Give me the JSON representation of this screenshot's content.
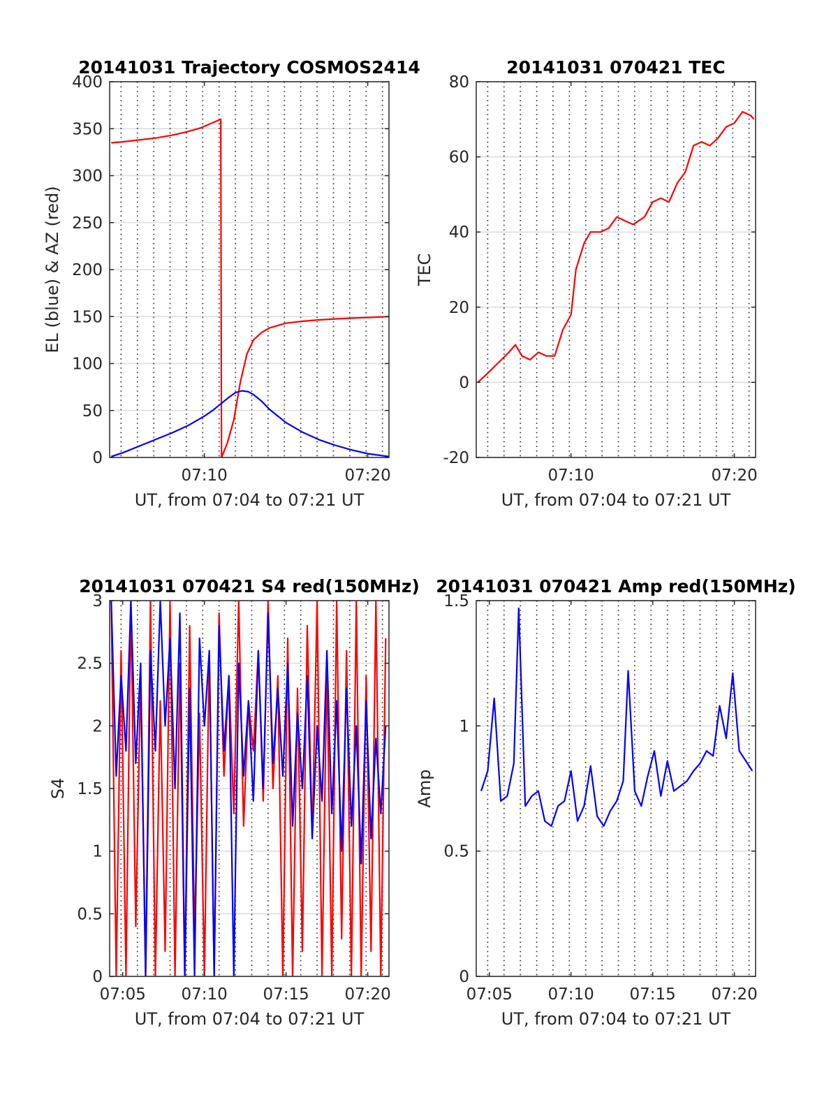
{
  "chart_data": [
    {
      "type": "line",
      "title": "20141031 Trajectory COSMOS2414",
      "xlabel": "UT, from 07:04 to 07:21 UT",
      "ylabel": "EL (blue) & AZ (red)",
      "xlim": [
        4.2,
        21.3
      ],
      "ylim": [
        0,
        400
      ],
      "x_tick_values": [
        10,
        20
      ],
      "x_tick_labels": [
        "07:10",
        "07:20"
      ],
      "y_tick_values": [
        0,
        50,
        100,
        150,
        200,
        250,
        300,
        350,
        400
      ],
      "y_tick_labels": [
        "0",
        "50",
        "100",
        "150",
        "200",
        "250",
        "300",
        "350",
        "400"
      ],
      "grid": true,
      "minor_grid_dotted": true,
      "series": [
        {
          "color": "#ff0000",
          "x": [
            4.3,
            5,
            6,
            7,
            8,
            9,
            9.8,
            10.2,
            10.6,
            11.0,
            11.05,
            11.4,
            11.8,
            12.2,
            12.6,
            13.0,
            13.5,
            14.0,
            15,
            16,
            17,
            18,
            19,
            20,
            21.3
          ],
          "y": [
            335,
            336,
            338,
            340,
            343,
            347,
            351,
            354,
            357,
            360,
            0,
            15,
            40,
            80,
            110,
            125,
            133,
            138,
            143,
            145,
            146.5,
            147.5,
            148.3,
            149,
            150
          ]
        },
        {
          "color": "#0000ff",
          "x": [
            4.3,
            5,
            6,
            7,
            8,
            9,
            10,
            10.5,
            11,
            11.5,
            11.9,
            12.3,
            12.7,
            13,
            13.5,
            14,
            15,
            16,
            17,
            18,
            19,
            20,
            21.3
          ],
          "y": [
            1,
            5,
            12,
            19,
            26,
            34,
            44,
            50,
            57,
            64,
            69,
            71,
            70,
            67,
            60,
            51,
            37,
            27,
            19,
            13,
            8,
            4,
            1
          ]
        }
      ]
    },
    {
      "type": "line",
      "title": "20141031 070421 TEC",
      "xlabel": "UT, from 07:04 to 07:21 UT",
      "ylabel": "TEC",
      "xlim": [
        4.2,
        21.3
      ],
      "ylim": [
        -20,
        80
      ],
      "x_tick_values": [
        10,
        20
      ],
      "x_tick_labels": [
        "07:10",
        "07:20"
      ],
      "y_tick_values": [
        -20,
        0,
        20,
        40,
        60,
        80
      ],
      "y_tick_labels": [
        "-20",
        "0",
        "20",
        "40",
        "60",
        "80"
      ],
      "grid": true,
      "minor_grid_dotted": true,
      "series": [
        {
          "color": "#ff0000",
          "x": [
            4.3,
            4.8,
            5.5,
            6.2,
            6.6,
            7.0,
            7.5,
            8.0,
            8.5,
            9.0,
            9.5,
            10.0,
            10.3,
            10.8,
            11.2,
            11.8,
            12.3,
            12.8,
            13.3,
            13.8,
            14.5,
            15.0,
            15.5,
            16.0,
            16.5,
            17.0,
            17.5,
            18.0,
            18.5,
            19.0,
            19.5,
            20.0,
            20.5,
            21.0,
            21.2
          ],
          "y": [
            0,
            2,
            5,
            8,
            10,
            7,
            6,
            8,
            7,
            7,
            14,
            18,
            30,
            37,
            40,
            40,
            41,
            44,
            43,
            42,
            44,
            48,
            49,
            48,
            53,
            56,
            63,
            64,
            63,
            65,
            68,
            69,
            72,
            71,
            70
          ]
        }
      ]
    },
    {
      "type": "line",
      "title": "20141031 070421 S4 red(150MHz)",
      "xlabel": "UT, from 07:04 to 07:21 UT",
      "ylabel": "S4",
      "xlim": [
        4.2,
        21.3
      ],
      "ylim": [
        0,
        3
      ],
      "x_tick_values": [
        5,
        10,
        15,
        20
      ],
      "x_tick_labels": [
        "07:05",
        "07:10",
        "07:15",
        "07:20"
      ],
      "y_tick_values": [
        0,
        0.5,
        1,
        1.5,
        2,
        2.5,
        3
      ],
      "y_tick_labels": [
        "0",
        "0.5",
        "1",
        "1.5",
        "2",
        "2.5",
        "3"
      ],
      "grid": true,
      "minor_grid_dotted": true,
      "series": [
        {
          "color": "#ff0000",
          "x": [
            4.3,
            4.6,
            4.9,
            5.2,
            5.5,
            5.8,
            6.1,
            6.4,
            6.7,
            7.0,
            7.3,
            7.6,
            7.9,
            8.2,
            8.5,
            8.8,
            9.1,
            9.4,
            9.7,
            10.0,
            10.3,
            10.6,
            10.9,
            11.2,
            11.5,
            11.8,
            12.1,
            12.4,
            12.7,
            13.0,
            13.3,
            13.6,
            13.9,
            14.2,
            14.5,
            14.8,
            15.1,
            15.4,
            15.7,
            16.0,
            16.3,
            16.6,
            16.9,
            17.2,
            17.5,
            17.8,
            18.1,
            18.4,
            18.7,
            19.0,
            19.3,
            19.6,
            19.9,
            20.2,
            20.5,
            20.8,
            21.1
          ],
          "y": [
            3,
            0,
            2.6,
            0,
            3,
            0.4,
            2.4,
            0,
            3,
            0,
            2.2,
            0.2,
            3,
            0,
            2.5,
            0,
            2.8,
            0.3,
            2.1,
            0,
            2.6,
            0,
            2.9,
            1.6,
            2.4,
            1.3,
            3,
            1.2,
            2.2,
            1.8,
            2.6,
            1.4,
            3,
            1.5,
            2.4,
            0,
            2.7,
            0,
            2.3,
            0.2,
            2.8,
            1.1,
            3,
            0,
            2.5,
            0,
            3,
            0.3,
            2.6,
            0,
            3,
            0,
            2.4,
            0.2,
            3,
            0,
            2.7
          ]
        },
        {
          "color": "#0000ff",
          "x": [
            4.3,
            4.6,
            4.9,
            5.2,
            5.5,
            5.8,
            6.1,
            6.4,
            6.7,
            7.0,
            7.3,
            7.6,
            7.9,
            8.2,
            8.5,
            8.8,
            9.1,
            9.4,
            9.7,
            10.0,
            10.3,
            10.6,
            10.9,
            11.2,
            11.5,
            11.8,
            12.1,
            12.4,
            12.7,
            13.0,
            13.3,
            13.6,
            13.9,
            14.2,
            14.5,
            14.8,
            15.1,
            15.4,
            15.7,
            16.0,
            16.3,
            16.6,
            16.9,
            17.2,
            17.5,
            17.8,
            18.1,
            18.4,
            18.7,
            19.0,
            19.3,
            19.6,
            19.9,
            20.2,
            20.5,
            20.8,
            21.1
          ],
          "y": [
            3,
            1.6,
            2.4,
            1.8,
            3,
            1.7,
            2.5,
            0,
            2.6,
            1.8,
            3,
            2.0,
            2.7,
            1.5,
            2.9,
            0,
            2.3,
            0,
            2.7,
            2.0,
            2.6,
            0,
            2.8,
            1.8,
            2.4,
            0,
            2.5,
            1.6,
            2.2,
            1.4,
            2.6,
            1.5,
            2.9,
            1.7,
            2.3,
            1.6,
            2.5,
            1.2,
            2.1,
            1.5,
            2.4,
            1.1,
            2.0,
            1.4,
            2.6,
            1.3,
            2.2,
            1.0,
            2.3,
            1.2,
            2.0,
            0.9,
            2.2,
            1.1,
            1.9,
            1.3,
            2.0
          ]
        }
      ]
    },
    {
      "type": "line",
      "title": "20141031 070421 Amp red(150MHz)",
      "xlabel": "UT, from 07:04 to 07:21 UT",
      "ylabel": "Amp",
      "xlim": [
        4.2,
        21.3
      ],
      "ylim": [
        0,
        1.5
      ],
      "x_tick_values": [
        5,
        10,
        15,
        20
      ],
      "x_tick_labels": [
        "07:05",
        "07:10",
        "07:15",
        "07:20"
      ],
      "y_tick_values": [
        0,
        0.5,
        1,
        1.5
      ],
      "y_tick_labels": [
        "0",
        "0.5",
        "1",
        "1.5"
      ],
      "grid": true,
      "minor_grid_dotted": true,
      "series": [
        {
          "color": "#0000ff",
          "x": [
            4.5,
            4.9,
            5.3,
            5.7,
            6.1,
            6.5,
            6.8,
            7.2,
            7.6,
            8.0,
            8.4,
            8.8,
            9.2,
            9.6,
            10.0,
            10.4,
            10.8,
            11.2,
            11.6,
            12.0,
            12.4,
            12.8,
            13.2,
            13.5,
            13.9,
            14.3,
            14.7,
            15.1,
            15.5,
            15.9,
            16.3,
            16.7,
            17.1,
            17.5,
            17.9,
            18.3,
            18.7,
            19.1,
            19.5,
            19.9,
            20.3,
            20.7,
            21.1
          ],
          "y": [
            0.74,
            0.82,
            1.11,
            0.7,
            0.72,
            0.85,
            1.47,
            0.68,
            0.72,
            0.74,
            0.62,
            0.6,
            0.68,
            0.7,
            0.82,
            0.62,
            0.68,
            0.84,
            0.64,
            0.6,
            0.66,
            0.7,
            0.78,
            1.22,
            0.74,
            0.68,
            0.8,
            0.9,
            0.72,
            0.86,
            0.74,
            0.76,
            0.78,
            0.82,
            0.85,
            0.9,
            0.88,
            1.08,
            0.95,
            1.21,
            0.9,
            0.86,
            0.82
          ]
        }
      ]
    }
  ]
}
